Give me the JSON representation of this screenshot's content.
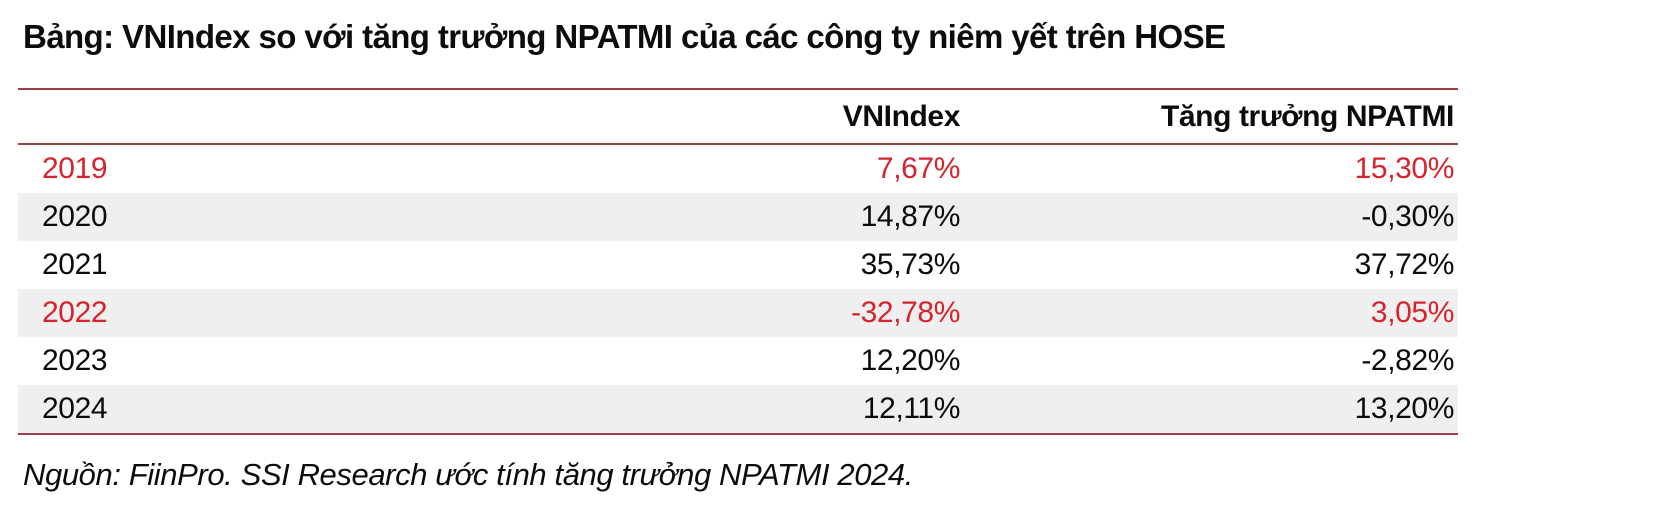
{
  "title": "Bảng: VNIndex so với tăng trưởng NPATMI của các công ty niêm yết trên HOSE",
  "table": {
    "columns": [
      "",
      "VNIndex",
      "Tăng trưởng NPATMI"
    ],
    "rows": [
      {
        "year": "2019",
        "vnindex": "7,67%",
        "npatmi": "15,30%",
        "highlight": true
      },
      {
        "year": "2020",
        "vnindex": "14,87%",
        "npatmi": "-0,30%",
        "highlight": false
      },
      {
        "year": "2021",
        "vnindex": "35,73%",
        "npatmi": "37,72%",
        "highlight": false
      },
      {
        "year": "2022",
        "vnindex": "-32,78%",
        "npatmi": "3,05%",
        "highlight": true
      },
      {
        "year": "2023",
        "vnindex": "12,20%",
        "npatmi": "-2,82%",
        "highlight": false
      },
      {
        "year": "2024",
        "vnindex": "12,11%",
        "npatmi": "13,20%",
        "highlight": false
      }
    ]
  },
  "source": "Nguồn: FiinPro. SSI Research ước tính tăng trưởng NPATMI 2024.",
  "colors": {
    "highlight_text": "#d8232e",
    "table_rule": "#9e3f46",
    "alt_row_bg": "#efefef",
    "text": "#0c0c0c"
  },
  "chart_data": {
    "type": "table",
    "title": "Bảng: VNIndex so với tăng trưởng NPATMI của các công ty niêm yết trên HOSE",
    "categories": [
      "2019",
      "2020",
      "2021",
      "2022",
      "2023",
      "2024"
    ],
    "series": [
      {
        "name": "VNIndex",
        "values": [
          7.67,
          14.87,
          35.73,
          -32.78,
          12.2,
          12.11
        ],
        "unit": "%"
      },
      {
        "name": "Tăng trưởng NPATMI",
        "values": [
          15.3,
          -0.3,
          37.72,
          3.05,
          -2.82,
          13.2
        ],
        "unit": "%"
      }
    ],
    "highlighted_rows": [
      "2019",
      "2022"
    ]
  }
}
